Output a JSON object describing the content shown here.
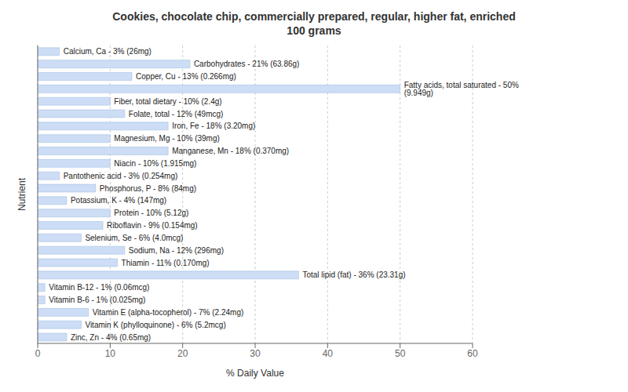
{
  "chart_data": {
    "type": "bar",
    "orientation": "horizontal",
    "title": "Cookies, chocolate chip, commercially prepared, regular, higher fat, enriched\n100 grams",
    "xlabel": "% Daily Value",
    "ylabel": "Nutrient",
    "categories": [
      "Calcium, Ca - 3% (26mg)",
      "Carbohydrates - 21% (63.86g)",
      "Copper, Cu - 13% (0.266mg)",
      "Fatty acids, total saturated - 50% (9.949g)",
      "Fiber, total dietary - 10% (2.4g)",
      "Folate, total - 12% (49mcg)",
      "Iron, Fe - 18% (3.20mg)",
      "Magnesium, Mg - 10% (39mg)",
      "Manganese, Mn - 18% (0.370mg)",
      "Niacin - 10% (1.915mg)",
      "Pantothenic acid - 3% (0.254mg)",
      "Phosphorus, P - 8% (84mg)",
      "Potassium, K - 4% (147mg)",
      "Protein - 10% (5.12g)",
      "Riboflavin - 9% (0.154mg)",
      "Selenium, Se - 6% (4.0mcg)",
      "Sodium, Na - 12% (296mg)",
      "Thiamin - 11% (0.170mg)",
      "Total lipid (fat) - 36% (23.31g)",
      "Vitamin B-12 - 1% (0.06mcg)",
      "Vitamin B-6 - 1% (0.025mg)",
      "Vitamin E (alpha-tocopherol) - 7% (2.24mg)",
      "Vitamin K (phylloquinone) - 6% (5.2mcg)",
      "Zinc, Zn - 4% (0.65mg)"
    ],
    "values": [
      3,
      21,
      13,
      50,
      10,
      12,
      18,
      10,
      18,
      10,
      3,
      8,
      4,
      10,
      9,
      6,
      12,
      11,
      36,
      1,
      1,
      7,
      6,
      4
    ],
    "color": "#ccddf5",
    "xlim": [
      0,
      60
    ],
    "xticks": [
      0,
      10,
      20,
      30,
      40,
      50,
      60
    ],
    "grid": true,
    "tick_labels": "x"
  }
}
